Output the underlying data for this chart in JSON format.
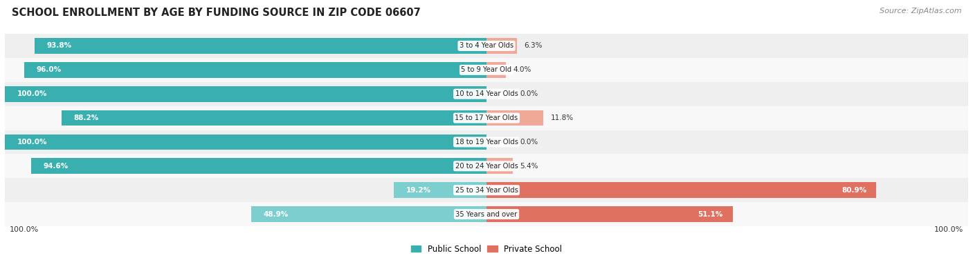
{
  "title": "SCHOOL ENROLLMENT BY AGE BY FUNDING SOURCE IN ZIP CODE 06607",
  "source": "Source: ZipAtlas.com",
  "categories": [
    "3 to 4 Year Olds",
    "5 to 9 Year Old",
    "10 to 14 Year Olds",
    "15 to 17 Year Olds",
    "18 to 19 Year Olds",
    "20 to 24 Year Olds",
    "25 to 34 Year Olds",
    "35 Years and over"
  ],
  "public_pct": [
    93.8,
    96.0,
    100.0,
    88.2,
    100.0,
    94.6,
    19.2,
    48.9
  ],
  "private_pct": [
    6.3,
    4.0,
    0.0,
    11.8,
    0.0,
    5.4,
    80.9,
    51.1
  ],
  "public_color_large": "#3AAFAF",
  "public_color_small": "#7DCECE",
  "private_color_large": "#E07060",
  "private_color_small": "#F0A898",
  "row_bg_even": "#EFEFEF",
  "row_bg_odd": "#F8F8F8",
  "figsize": [
    14.06,
    3.77
  ],
  "dpi": 100,
  "bar_height": 0.65,
  "pub_threshold": 50,
  "priv_threshold": 50
}
